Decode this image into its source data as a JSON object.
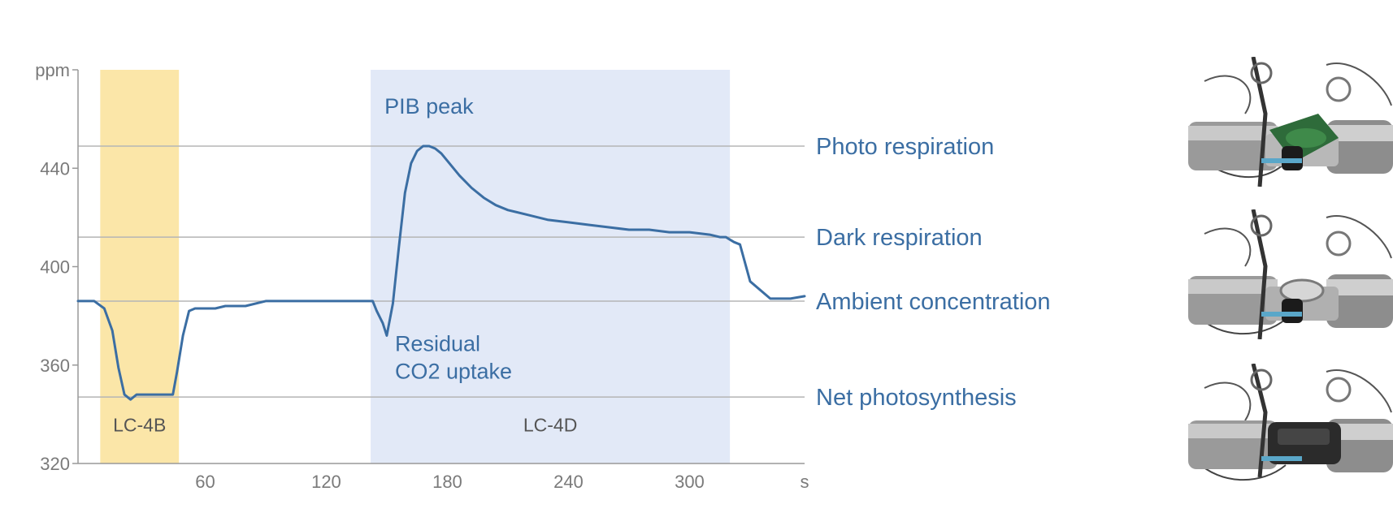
{
  "chart_data": {
    "type": "line",
    "title": "",
    "xlabel": "s",
    "ylabel": "ppm",
    "xlim": [
      -3,
      357
    ],
    "ylim": [
      320,
      480
    ],
    "x_ticks": [
      60,
      120,
      180,
      240,
      300
    ],
    "y_ticks": [
      320,
      360,
      400,
      440
    ],
    "grid": false,
    "series": [
      {
        "x": [
          -3,
          5,
          10,
          14,
          17,
          20,
          23,
          26,
          30,
          35,
          40,
          44,
          46,
          49,
          52,
          55,
          60,
          65,
          70,
          80,
          90,
          100,
          110,
          120,
          130,
          140,
          143,
          145,
          148,
          150,
          153,
          156,
          159,
          162,
          165,
          168,
          171,
          174,
          177,
          180,
          186,
          192,
          198,
          204,
          210,
          220,
          230,
          240,
          250,
          260,
          270,
          280,
          290,
          300,
          310,
          315,
          318,
          320,
          322,
          325,
          330,
          340,
          350,
          357
        ],
        "y": [
          386,
          386,
          383,
          374,
          359,
          348,
          346,
          348,
          348,
          348,
          348,
          348,
          357,
          372,
          382,
          383,
          383,
          383,
          384,
          384,
          386,
          386,
          386,
          386,
          386,
          386,
          386,
          382,
          377,
          372,
          385,
          408,
          430,
          442,
          447,
          449,
          449,
          448,
          446,
          443,
          437,
          432,
          428,
          425,
          423,
          421,
          419,
          418,
          417,
          416,
          415,
          415,
          414,
          414,
          413,
          412,
          412,
          411,
          410,
          409,
          394,
          387,
          387,
          388
        ]
      }
    ],
    "reference_lines": [
      {
        "label": "Photo respiration",
        "y": 449
      },
      {
        "label": "Dark respiration",
        "y": 412
      },
      {
        "label": "Ambient concentration",
        "y": 386
      },
      {
        "label": "Net photosynthesis",
        "y": 347
      }
    ],
    "regions": [
      {
        "label": "LC-4B",
        "x0": 8,
        "x1": 47,
        "color": "#fbe6a8"
      },
      {
        "label": "LC-4D",
        "x0": 142,
        "x1": 320,
        "color": "#e2e9f7"
      }
    ],
    "annotations": [
      {
        "lines": [
          "PIB peak"
        ],
        "x": 171,
        "y": 449
      },
      {
        "lines": [
          "Residual",
          "CO2 uptake"
        ],
        "x": 150,
        "y": 372
      }
    ],
    "colors": {
      "line": "#3b6ea3",
      "axis": "#999999",
      "ref_line": "#b5b5b5",
      "tick_text": "#7a7a7a",
      "label_text": "#3b6ea3",
      "region_text": "#555555"
    }
  },
  "photos": [
    {
      "name": "leaf-chamber-photo-leaf",
      "description_icon": "leaf-chamber-with-leaf-icon"
    },
    {
      "name": "leaf-chamber-photo-open",
      "description_icon": "leaf-chamber-open-icon"
    },
    {
      "name": "leaf-chamber-photo-dark",
      "description_icon": "leaf-chamber-dark-cover-icon"
    }
  ]
}
